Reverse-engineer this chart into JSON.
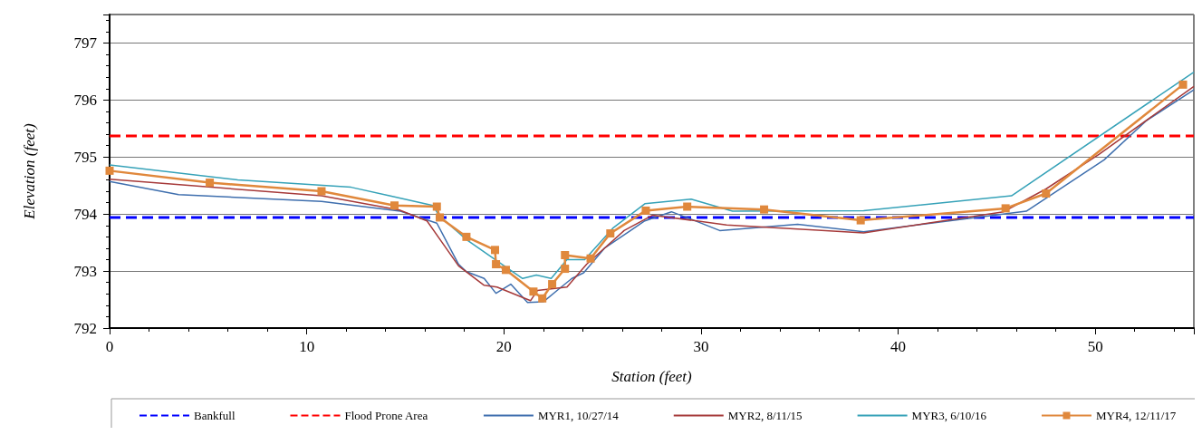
{
  "chart_data": {
    "type": "line",
    "xlabel": "Station (feet)",
    "ylabel": "Elevation (feet)",
    "xlim": [
      0,
      55
    ],
    "xticks": [
      0,
      10,
      20,
      30,
      40,
      50
    ],
    "ylim": [
      792,
      797.5
    ],
    "yticks": [
      792,
      793,
      794,
      795,
      796,
      797
    ],
    "grid": "y",
    "legend": "bottom",
    "series": [
      {
        "name": "Bankfull",
        "color": "#0000ff",
        "line_style": "dashed",
        "marker": "none",
        "x": [
          0,
          55
        ],
        "values": [
          793.94,
          793.94
        ]
      },
      {
        "name": "Flood Prone Area",
        "color": "#ff0000",
        "line_style": "dashed",
        "marker": "none",
        "x": [
          0,
          55
        ],
        "values": [
          795.37,
          795.37
        ]
      },
      {
        "name": "MYR1, 10/27/14",
        "color": "#3f6fae",
        "line_style": "solid",
        "marker": "none",
        "x": [
          0,
          3.5,
          10.75,
          14.75,
          16.6,
          17.7,
          18.1,
          19.0,
          19.6,
          20.35,
          21.2,
          22.0,
          22.7,
          23.45,
          24.05,
          25.1,
          27.15,
          28.5,
          29.5,
          30.95,
          34.9,
          38.25,
          46.5,
          50.45,
          52.6,
          55
        ],
        "values": [
          794.57,
          794.34,
          794.22,
          794.05,
          793.84,
          793.12,
          792.99,
          792.87,
          792.61,
          792.77,
          792.45,
          792.46,
          792.66,
          792.87,
          792.97,
          793.4,
          793.88,
          794.04,
          793.91,
          793.71,
          793.82,
          793.69,
          794.05,
          794.95,
          795.64,
          796.18
        ]
      },
      {
        "name": "MYR2, 8/11/15",
        "color": "#a63a3a",
        "line_style": "solid",
        "marker": "none",
        "x": [
          0,
          10.75,
          14.7,
          16.1,
          17.7,
          19.0,
          19.65,
          21.35,
          21.7,
          23.2,
          24.2,
          26.1,
          27.55,
          31.3,
          38.25,
          45.35,
          47.5,
          50.2,
          55
        ],
        "values": [
          794.61,
          794.32,
          794.07,
          793.88,
          793.09,
          792.75,
          792.72,
          792.48,
          792.66,
          792.72,
          793.12,
          793.71,
          793.98,
          793.81,
          793.67,
          794.04,
          794.44,
          795.05,
          796.24
        ]
      },
      {
        "name": "MYR3, 6/10/16",
        "color": "#36a2b8",
        "line_style": "solid",
        "marker": "none",
        "x": [
          0,
          6.5,
          12.25,
          14.2,
          16.4,
          16.7,
          18.1,
          19.9,
          20.95,
          21.65,
          22.4,
          23.2,
          24.1,
          25.55,
          27.15,
          29.5,
          31.6,
          38.25,
          45.75,
          55
        ],
        "values": [
          794.86,
          794.6,
          794.47,
          794.32,
          794.15,
          793.98,
          793.55,
          793.12,
          792.87,
          792.93,
          792.87,
          793.2,
          793.2,
          793.76,
          794.18,
          794.26,
          794.05,
          794.06,
          794.32,
          796.49
        ]
      },
      {
        "name": "MYR4, 12/11/17",
        "color": "#e0883c",
        "line_style": "solid",
        "marker": "square",
        "x": [
          0,
          5.08,
          10.75,
          14.45,
          16.6,
          16.75,
          18.1,
          19.55,
          19.6,
          20.1,
          21.5,
          21.95,
          22.45,
          23.1,
          23.1,
          24.4,
          25.4,
          27.2,
          29.3,
          33.2,
          38.1,
          45.45,
          47.5,
          54.45
        ],
        "values": [
          794.76,
          794.55,
          794.4,
          794.15,
          794.13,
          793.94,
          793.6,
          793.37,
          793.12,
          793.02,
          792.64,
          792.52,
          792.77,
          793.04,
          793.28,
          793.22,
          793.66,
          794.06,
          794.13,
          794.08,
          793.89,
          794.1,
          794.36,
          796.27
        ]
      }
    ]
  }
}
